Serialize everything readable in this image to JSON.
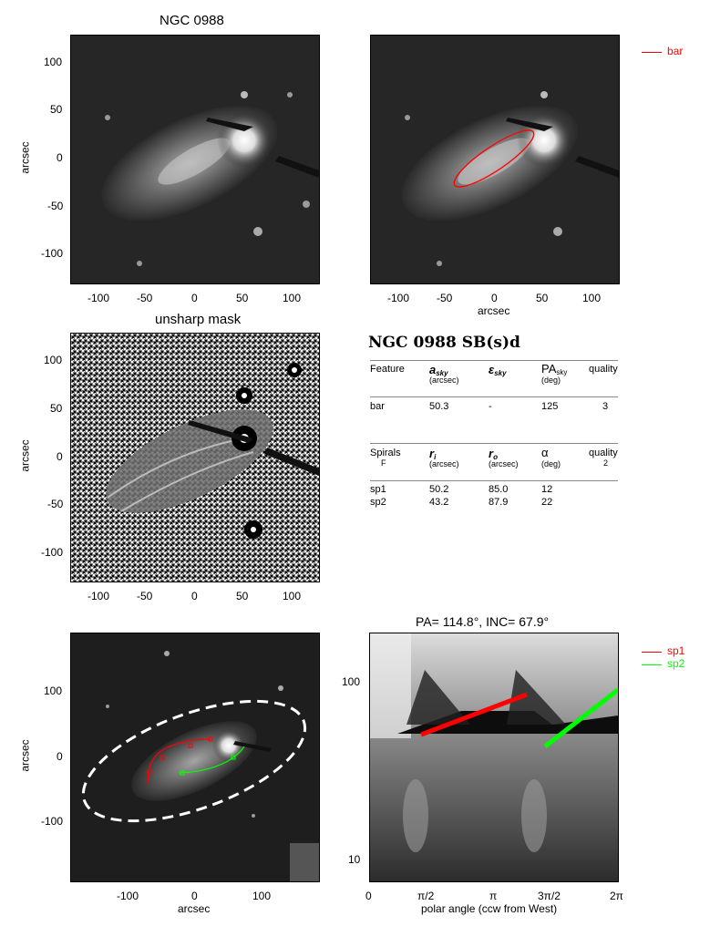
{
  "panels": {
    "image_title": "NGC 0988",
    "unsharp_title": "unsharp mask",
    "polar_title": "PA= 114.8°, INC=  67.9°"
  },
  "axes": {
    "arcsec_label": "arcsec",
    "polar_xlabel": "polar angle (ccw from West)",
    "ticks_130": [
      "-100",
      "-50",
      "0",
      "50",
      "100"
    ],
    "ticks_y_130": [
      "100",
      "50",
      "0",
      "-50",
      "-100"
    ],
    "ticks_200": [
      "-100",
      "0",
      "100"
    ],
    "ticks_y_200": [
      "100",
      "0",
      "-100"
    ],
    "polar_xticks": [
      "0",
      "π/2",
      "π",
      "3π/2",
      "2π"
    ],
    "polar_yticks": [
      "100",
      "10"
    ]
  },
  "legend": {
    "bar": "bar",
    "bar_color": "#ff0000",
    "sp1": "sp1",
    "sp1_color": "#ff0000",
    "sp2": "sp2",
    "sp2_color": "#00ff00"
  },
  "table": {
    "heading": "NGC 0988  SB(s)d",
    "bar_headers": {
      "feature": "Feature",
      "a": "a",
      "a_sub": "sky",
      "a_unit": "(arcsec)",
      "eps": "ε",
      "eps_sub": "sky",
      "pa": "PA",
      "pa_sub": "sky",
      "pa_unit": "(deg)",
      "quality": "quality"
    },
    "bar_row": {
      "feature": "bar",
      "a": "50.3",
      "eps": "-",
      "pa": "125",
      "quality": "3"
    },
    "spiral_headers": {
      "spirals": "Spirals",
      "class": "F",
      "ri": "r",
      "ri_sub": "i",
      "ri_unit": "(arcsec)",
      "ro": "r",
      "ro_sub": "o",
      "ro_unit": "(arcsec)",
      "alpha": "α",
      "alpha_unit": "(deg)",
      "quality": "quality",
      "quality_val": "2"
    },
    "spiral_rows": [
      {
        "name": "sp1",
        "ri": "50.2",
        "ro": "85.0",
        "alpha": "12"
      },
      {
        "name": "sp2",
        "ri": "43.2",
        "ro": "87.9",
        "alpha": "22"
      }
    ]
  }
}
